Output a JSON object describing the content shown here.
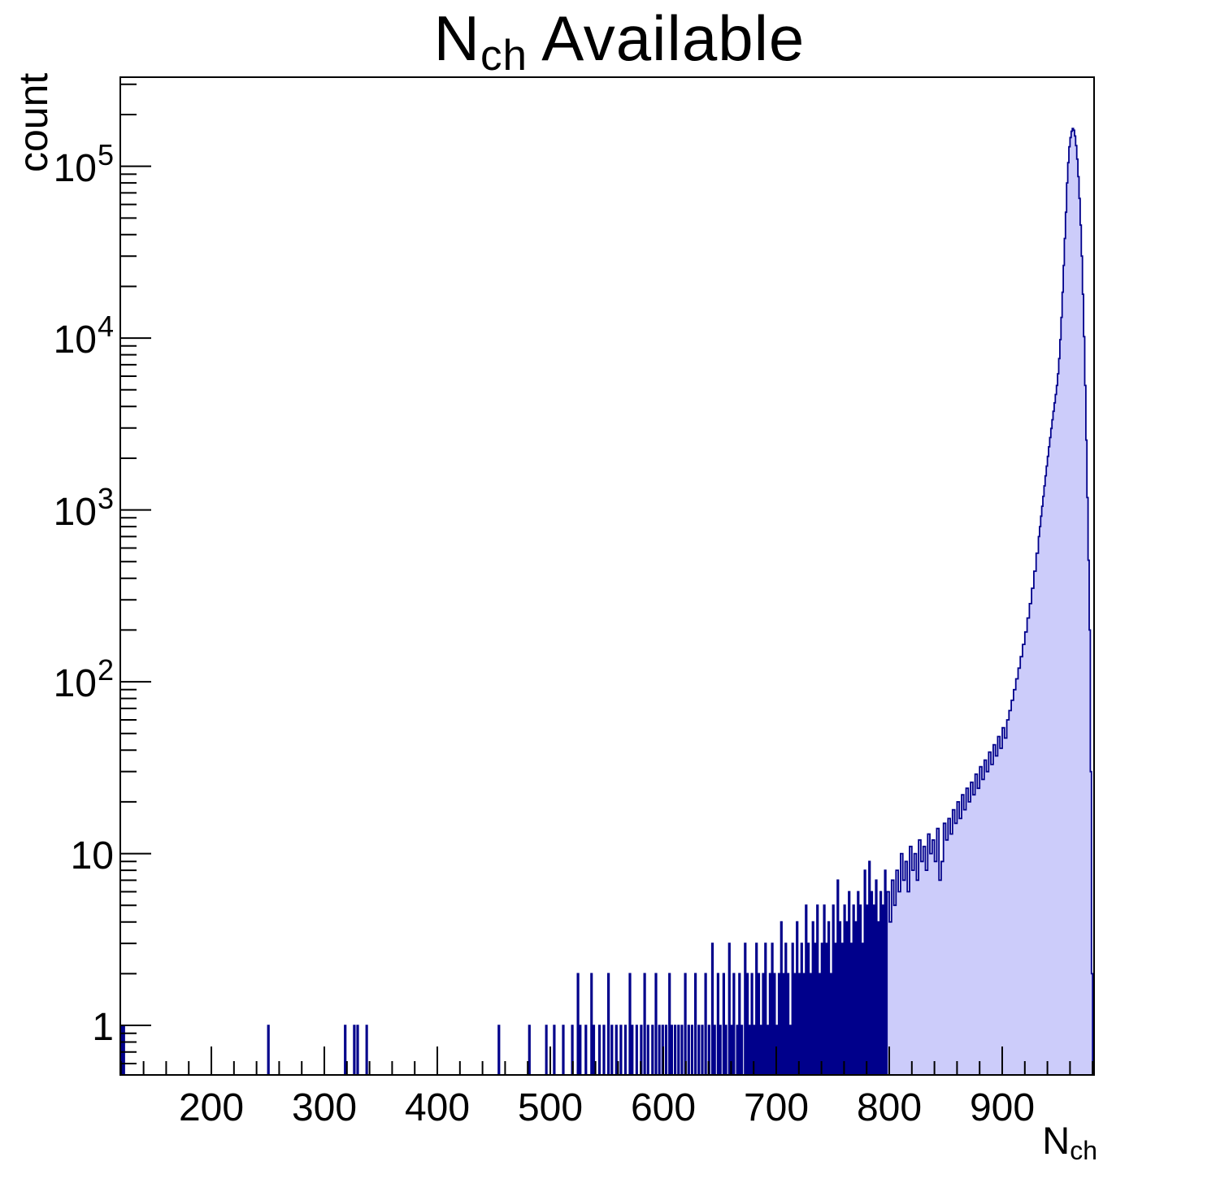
{
  "title": {
    "pre": "N",
    "sub": "ch",
    "post": "Available"
  },
  "axes": {
    "x": {
      "label_pre": "N",
      "label_sub": "ch"
    },
    "y": {
      "label": "count"
    }
  },
  "chart_data": {
    "type": "bar",
    "subtype": "histogram-log-y",
    "title": "N_ch Available",
    "xlabel": "N_ch",
    "ylabel": "count",
    "xlim": [
      119.4,
      981.3
    ],
    "ylim": [
      0.515,
      330000
    ],
    "y_scale": "log",
    "grid": false,
    "legend": "none",
    "fill_color": "#ccccfa",
    "line_color": "#00008b",
    "frame_color": "#000000",
    "x_major_ticks": [
      200,
      300,
      400,
      500,
      600,
      700,
      800,
      900
    ],
    "x_minor": {
      "start": 120,
      "end": 980,
      "step": 20
    },
    "y_major_ticks": [
      {
        "v": 1,
        "t": "1"
      },
      {
        "v": 10,
        "t": "10"
      },
      {
        "v": 100,
        "t": "10",
        "e": "2"
      },
      {
        "v": 1000,
        "t": "10",
        "e": "3"
      },
      {
        "v": 10000,
        "t": "10",
        "e": "4"
      },
      {
        "v": 100000,
        "t": "10",
        "e": "5"
      }
    ],
    "y_minor": {
      "k_from": 2,
      "k_to": 9,
      "exp_from": -1,
      "exp_to": 5
    },
    "peak": {
      "x": 962,
      "count": 166000
    },
    "bins": [
      [
        120,
        1,
        1
      ],
      [
        122,
        1,
        1
      ],
      [
        250,
        1,
        1
      ],
      [
        318,
        1,
        1
      ],
      [
        326,
        1,
        1
      ],
      [
        329,
        1,
        1
      ],
      [
        337,
        1,
        1
      ],
      [
        454,
        1,
        1
      ],
      [
        481,
        1,
        1
      ],
      [
        496,
        1,
        1
      ],
      [
        503,
        1,
        1
      ],
      [
        511,
        1,
        1
      ],
      [
        519,
        1,
        1
      ],
      [
        524,
        1,
        2
      ],
      [
        526,
        1,
        1
      ],
      [
        531,
        1,
        1
      ],
      [
        536,
        1,
        2
      ],
      [
        538,
        1,
        1
      ],
      [
        543,
        1,
        1
      ],
      [
        547,
        1,
        1
      ],
      [
        551,
        1,
        2
      ],
      [
        554,
        1,
        1
      ],
      [
        558,
        1,
        1
      ],
      [
        562,
        1,
        1
      ],
      [
        566,
        1,
        1
      ],
      [
        570,
        1,
        2
      ],
      [
        572,
        1,
        1
      ],
      [
        576,
        1,
        1
      ],
      [
        580,
        1,
        1
      ],
      [
        583,
        1,
        2
      ],
      [
        586,
        1,
        1
      ],
      [
        590,
        1,
        1
      ],
      [
        593,
        1,
        2
      ],
      [
        596,
        1,
        1
      ],
      [
        599,
        1,
        1
      ],
      [
        602,
        1,
        1
      ],
      [
        605,
        1,
        2
      ],
      [
        607,
        1,
        1
      ],
      [
        610,
        1,
        1
      ],
      [
        613,
        1,
        1
      ],
      [
        616,
        1,
        1
      ],
      [
        619,
        1,
        2
      ],
      [
        622,
        1,
        1
      ],
      [
        625,
        1,
        1
      ],
      [
        628,
        1,
        2
      ],
      [
        631,
        1,
        1
      ],
      [
        634,
        1,
        1
      ],
      [
        637,
        1,
        2
      ],
      [
        640,
        1,
        1
      ],
      [
        643,
        1,
        3
      ],
      [
        645,
        1,
        1
      ],
      [
        648,
        1,
        2
      ],
      [
        650,
        1,
        1
      ],
      [
        653,
        1,
        2
      ],
      [
        655,
        1,
        1
      ],
      [
        658,
        1,
        3
      ],
      [
        660,
        1,
        1
      ],
      [
        662,
        1,
        2
      ],
      [
        665,
        1,
        1
      ],
      [
        667,
        1,
        2
      ],
      [
        669,
        1,
        1
      ],
      [
        672,
        1,
        3
      ],
      [
        674,
        1,
        2
      ],
      [
        676,
        1,
        1
      ],
      [
        678,
        1,
        2
      ],
      [
        680,
        1,
        1
      ],
      [
        682,
        1,
        3
      ],
      [
        684,
        1,
        2
      ],
      [
        686,
        1,
        1
      ],
      [
        688,
        1,
        2
      ],
      [
        690,
        1,
        3
      ],
      [
        692,
        1,
        1
      ],
      [
        694,
        1,
        2
      ],
      [
        696,
        1,
        3
      ],
      [
        698,
        1,
        2
      ],
      [
        700,
        1,
        1
      ],
      [
        702,
        1,
        2
      ],
      [
        704,
        1,
        4
      ],
      [
        706,
        1,
        2
      ],
      [
        708,
        1,
        3
      ],
      [
        710,
        1,
        2
      ],
      [
        712,
        1,
        1
      ],
      [
        714,
        1,
        3
      ],
      [
        716,
        1,
        2
      ],
      [
        718,
        1,
        4
      ],
      [
        720,
        1,
        2
      ],
      [
        722,
        1,
        3
      ],
      [
        724,
        1,
        2
      ],
      [
        726,
        1,
        5
      ],
      [
        728,
        1,
        3
      ],
      [
        730,
        1,
        2
      ],
      [
        732,
        1,
        4
      ],
      [
        734,
        1,
        3
      ],
      [
        736,
        1,
        5
      ],
      [
        738,
        1,
        2
      ],
      [
        740,
        1,
        3
      ],
      [
        742,
        1,
        5
      ],
      [
        744,
        1,
        3
      ],
      [
        746,
        1,
        4
      ],
      [
        748,
        1,
        2
      ],
      [
        750,
        1,
        5
      ],
      [
        752,
        1,
        3
      ],
      [
        754,
        1,
        7
      ],
      [
        756,
        1,
        4
      ],
      [
        758,
        1,
        3
      ],
      [
        760,
        1,
        5
      ],
      [
        762,
        1,
        4
      ],
      [
        764,
        1,
        6
      ],
      [
        766,
        1,
        3
      ],
      [
        768,
        1,
        5
      ],
      [
        770,
        1,
        4
      ],
      [
        772,
        1,
        6
      ],
      [
        774,
        1,
        5
      ],
      [
        776,
        1,
        3
      ],
      [
        778,
        1,
        8
      ],
      [
        780,
        1,
        5
      ],
      [
        782,
        1,
        9
      ],
      [
        784,
        1,
        6
      ],
      [
        786,
        1,
        5
      ],
      [
        788,
        1,
        7
      ],
      [
        790,
        1,
        4
      ],
      [
        792,
        1,
        6
      ],
      [
        794,
        1,
        5
      ],
      [
        796,
        1,
        8
      ],
      [
        798,
        2,
        6
      ],
      [
        800,
        2,
        4
      ],
      [
        802,
        2,
        7
      ],
      [
        804,
        2,
        5
      ],
      [
        806,
        2,
        8
      ],
      [
        808,
        2,
        6
      ],
      [
        810,
        2,
        10
      ],
      [
        812,
        2,
        7
      ],
      [
        814,
        2,
        9
      ],
      [
        816,
        2,
        6
      ],
      [
        818,
        2,
        11
      ],
      [
        820,
        2,
        8
      ],
      [
        822,
        2,
        10
      ],
      [
        824,
        2,
        7
      ],
      [
        826,
        2,
        12
      ],
      [
        828,
        2,
        9
      ],
      [
        830,
        2,
        11
      ],
      [
        832,
        2,
        8
      ],
      [
        834,
        2,
        13
      ],
      [
        836,
        2,
        10
      ],
      [
        838,
        2,
        12
      ],
      [
        840,
        2,
        9
      ],
      [
        842,
        2,
        14
      ],
      [
        844,
        2,
        7
      ],
      [
        846,
        2,
        9
      ],
      [
        848,
        2,
        15
      ],
      [
        850,
        2,
        12
      ],
      [
        852,
        2,
        16
      ],
      [
        854,
        2,
        13
      ],
      [
        856,
        2,
        18
      ],
      [
        858,
        2,
        15
      ],
      [
        860,
        2,
        20
      ],
      [
        862,
        2,
        16
      ],
      [
        864,
        2,
        22
      ],
      [
        866,
        2,
        18
      ],
      [
        868,
        2,
        24
      ],
      [
        870,
        2,
        20
      ],
      [
        872,
        2,
        26
      ],
      [
        874,
        2,
        22
      ],
      [
        876,
        2,
        29
      ],
      [
        878,
        2,
        24
      ],
      [
        880,
        2,
        32
      ],
      [
        882,
        2,
        27
      ],
      [
        884,
        2,
        35
      ],
      [
        886,
        2,
        30
      ],
      [
        888,
        2,
        39
      ],
      [
        890,
        2,
        33
      ],
      [
        892,
        2,
        43
      ],
      [
        894,
        2,
        37
      ],
      [
        896,
        2,
        48
      ],
      [
        898,
        2,
        41
      ],
      [
        900,
        2,
        54
      ],
      [
        902,
        2,
        47
      ],
      [
        904,
        2,
        60
      ],
      [
        906,
        2,
        68
      ],
      [
        908,
        2,
        78
      ],
      [
        910,
        2,
        90
      ],
      [
        912,
        2,
        104
      ],
      [
        914,
        2,
        120
      ],
      [
        916,
        2,
        140
      ],
      [
        918,
        2,
        165
      ],
      [
        920,
        2,
        195
      ],
      [
        922,
        2,
        235
      ],
      [
        924,
        2,
        285
      ],
      [
        926,
        2,
        350
      ],
      [
        928,
        2,
        440
      ],
      [
        930,
        2,
        560
      ],
      [
        932,
        1,
        700
      ],
      [
        933,
        1,
        800
      ],
      [
        934,
        1,
        920
      ],
      [
        935,
        1,
        1050
      ],
      [
        936,
        1,
        1200
      ],
      [
        937,
        1,
        1380
      ],
      [
        938,
        1,
        1580
      ],
      [
        939,
        1,
        1800
      ],
      [
        940,
        1,
        2050
      ],
      [
        941,
        1,
        2330
      ],
      [
        942,
        1,
        2640
      ],
      [
        943,
        1,
        2980
      ],
      [
        944,
        1,
        3350
      ],
      [
        945,
        1,
        3750
      ],
      [
        946,
        1,
        4200
      ],
      [
        947,
        1,
        4700
      ],
      [
        948,
        1,
        5300
      ],
      [
        949,
        1,
        6200
      ],
      [
        950,
        1,
        7600
      ],
      [
        951,
        1,
        9800
      ],
      [
        952,
        1,
        13200
      ],
      [
        953,
        1,
        18500
      ],
      [
        954,
        1,
        26500
      ],
      [
        955,
        1,
        38000
      ],
      [
        956,
        1,
        54000
      ],
      [
        957,
        1,
        80000
      ],
      [
        958,
        1,
        105000
      ],
      [
        959,
        1,
        130000
      ],
      [
        960,
        1,
        147000
      ],
      [
        961,
        1,
        160000
      ],
      [
        962,
        1,
        166000
      ],
      [
        963,
        1,
        162000
      ],
      [
        964,
        1,
        150000
      ],
      [
        965,
        1,
        132000
      ],
      [
        966,
        1,
        110000
      ],
      [
        967,
        1,
        87000
      ],
      [
        968,
        1,
        65000
      ],
      [
        969,
        1,
        45500
      ],
      [
        970,
        1,
        30000
      ],
      [
        971,
        1,
        18000
      ],
      [
        972,
        1,
        10200
      ],
      [
        973,
        1,
        5300
      ],
      [
        974,
        1,
        2550
      ],
      [
        975,
        1,
        1180
      ],
      [
        976,
        1,
        510
      ],
      [
        977,
        1,
        200
      ],
      [
        978,
        1,
        30
      ],
      [
        979,
        1,
        2
      ]
    ]
  }
}
